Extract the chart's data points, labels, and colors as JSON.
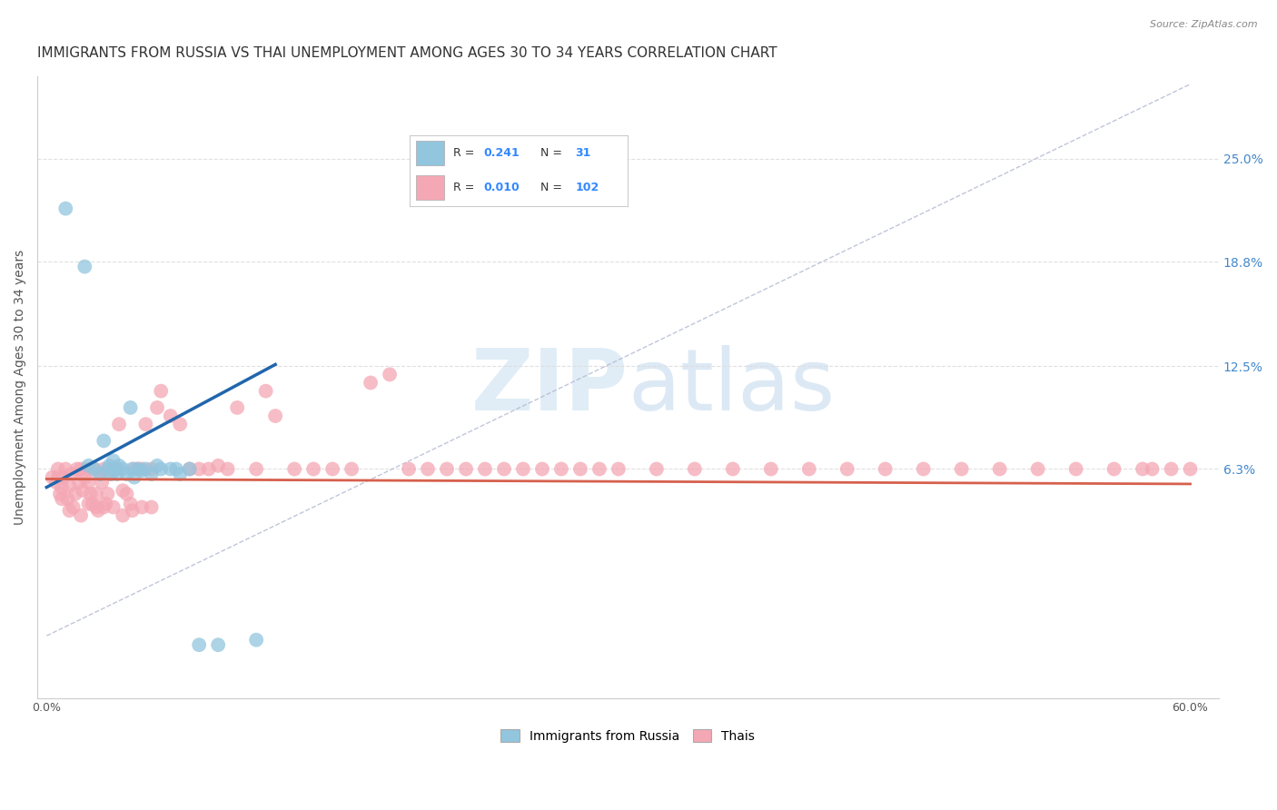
{
  "title": "IMMIGRANTS FROM RUSSIA VS THAI UNEMPLOYMENT AMONG AGES 30 TO 34 YEARS CORRELATION CHART",
  "source": "Source: ZipAtlas.com",
  "ylabel": "Unemployment Among Ages 30 to 34 years",
  "xlim": [
    -0.005,
    0.615
  ],
  "ylim": [
    -0.075,
    0.3
  ],
  "ytick_positions": [
    0.063,
    0.125,
    0.188,
    0.25
  ],
  "yticklabels": [
    "6.3%",
    "12.5%",
    "18.8%",
    "25.0%"
  ],
  "russia_color": "#92c5de",
  "thai_color": "#f4a7b4",
  "russia_line_color": "#2166ac",
  "thai_line_color": "#d6604d",
  "diag_color": "#aaaacc",
  "background_color": "#ffffff",
  "grid_color": "#dddddd",
  "title_fontsize": 11,
  "axis_label_fontsize": 10,
  "tick_fontsize": 9,
  "russia_scatter_x": [
    0.01,
    0.02,
    0.022,
    0.025,
    0.028,
    0.03,
    0.032,
    0.033,
    0.034,
    0.035,
    0.036,
    0.037,
    0.038,
    0.04,
    0.042,
    0.044,
    0.045,
    0.046,
    0.048,
    0.05,
    0.052,
    0.055,
    0.058,
    0.06,
    0.065,
    0.068,
    0.07,
    0.075,
    0.08,
    0.09,
    0.11
  ],
  "russia_scatter_y": [
    0.22,
    0.185,
    0.065,
    0.063,
    0.06,
    0.08,
    0.063,
    0.065,
    0.06,
    0.068,
    0.063,
    0.06,
    0.065,
    0.063,
    0.06,
    0.1,
    0.063,
    0.058,
    0.063,
    0.062,
    0.063,
    0.06,
    0.065,
    0.063,
    0.063,
    0.063,
    0.06,
    0.063,
    -0.043,
    -0.043,
    -0.04
  ],
  "thai_scatter_x": [
    0.003,
    0.005,
    0.006,
    0.007,
    0.008,
    0.009,
    0.01,
    0.011,
    0.012,
    0.013,
    0.014,
    0.015,
    0.016,
    0.017,
    0.018,
    0.019,
    0.02,
    0.021,
    0.022,
    0.023,
    0.024,
    0.025,
    0.026,
    0.027,
    0.028,
    0.029,
    0.03,
    0.031,
    0.032,
    0.033,
    0.034,
    0.035,
    0.037,
    0.038,
    0.04,
    0.042,
    0.044,
    0.046,
    0.048,
    0.05,
    0.052,
    0.055,
    0.058,
    0.06,
    0.065,
    0.07,
    0.075,
    0.08,
    0.085,
    0.09,
    0.095,
    0.1,
    0.11,
    0.115,
    0.12,
    0.13,
    0.14,
    0.15,
    0.16,
    0.17,
    0.18,
    0.19,
    0.2,
    0.21,
    0.22,
    0.23,
    0.24,
    0.25,
    0.26,
    0.27,
    0.28,
    0.29,
    0.3,
    0.32,
    0.34,
    0.36,
    0.38,
    0.4,
    0.42,
    0.44,
    0.46,
    0.48,
    0.5,
    0.52,
    0.54,
    0.56,
    0.575,
    0.58,
    0.59,
    0.6,
    0.006,
    0.008,
    0.012,
    0.018,
    0.022,
    0.026,
    0.03,
    0.035,
    0.04,
    0.045,
    0.05,
    0.055
  ],
  "thai_scatter_y": [
    0.058,
    0.055,
    0.063,
    0.048,
    0.052,
    0.058,
    0.063,
    0.045,
    0.053,
    0.06,
    0.04,
    0.048,
    0.063,
    0.055,
    0.063,
    0.05,
    0.058,
    0.063,
    0.055,
    0.048,
    0.042,
    0.063,
    0.04,
    0.038,
    0.06,
    0.055,
    0.063,
    0.042,
    0.048,
    0.06,
    0.063,
    0.063,
    0.063,
    0.09,
    0.05,
    0.048,
    0.042,
    0.063,
    0.063,
    0.063,
    0.09,
    0.063,
    0.1,
    0.11,
    0.095,
    0.09,
    0.063,
    0.063,
    0.063,
    0.065,
    0.063,
    0.1,
    0.063,
    0.11,
    0.095,
    0.063,
    0.063,
    0.063,
    0.063,
    0.115,
    0.12,
    0.063,
    0.063,
    0.063,
    0.063,
    0.063,
    0.063,
    0.063,
    0.063,
    0.063,
    0.063,
    0.063,
    0.063,
    0.063,
    0.063,
    0.063,
    0.063,
    0.063,
    0.063,
    0.063,
    0.063,
    0.063,
    0.063,
    0.063,
    0.063,
    0.063,
    0.063,
    0.063,
    0.063,
    0.063,
    0.058,
    0.045,
    0.038,
    0.035,
    0.042,
    0.048,
    0.04,
    0.04,
    0.035,
    0.038,
    0.04,
    0.04
  ]
}
